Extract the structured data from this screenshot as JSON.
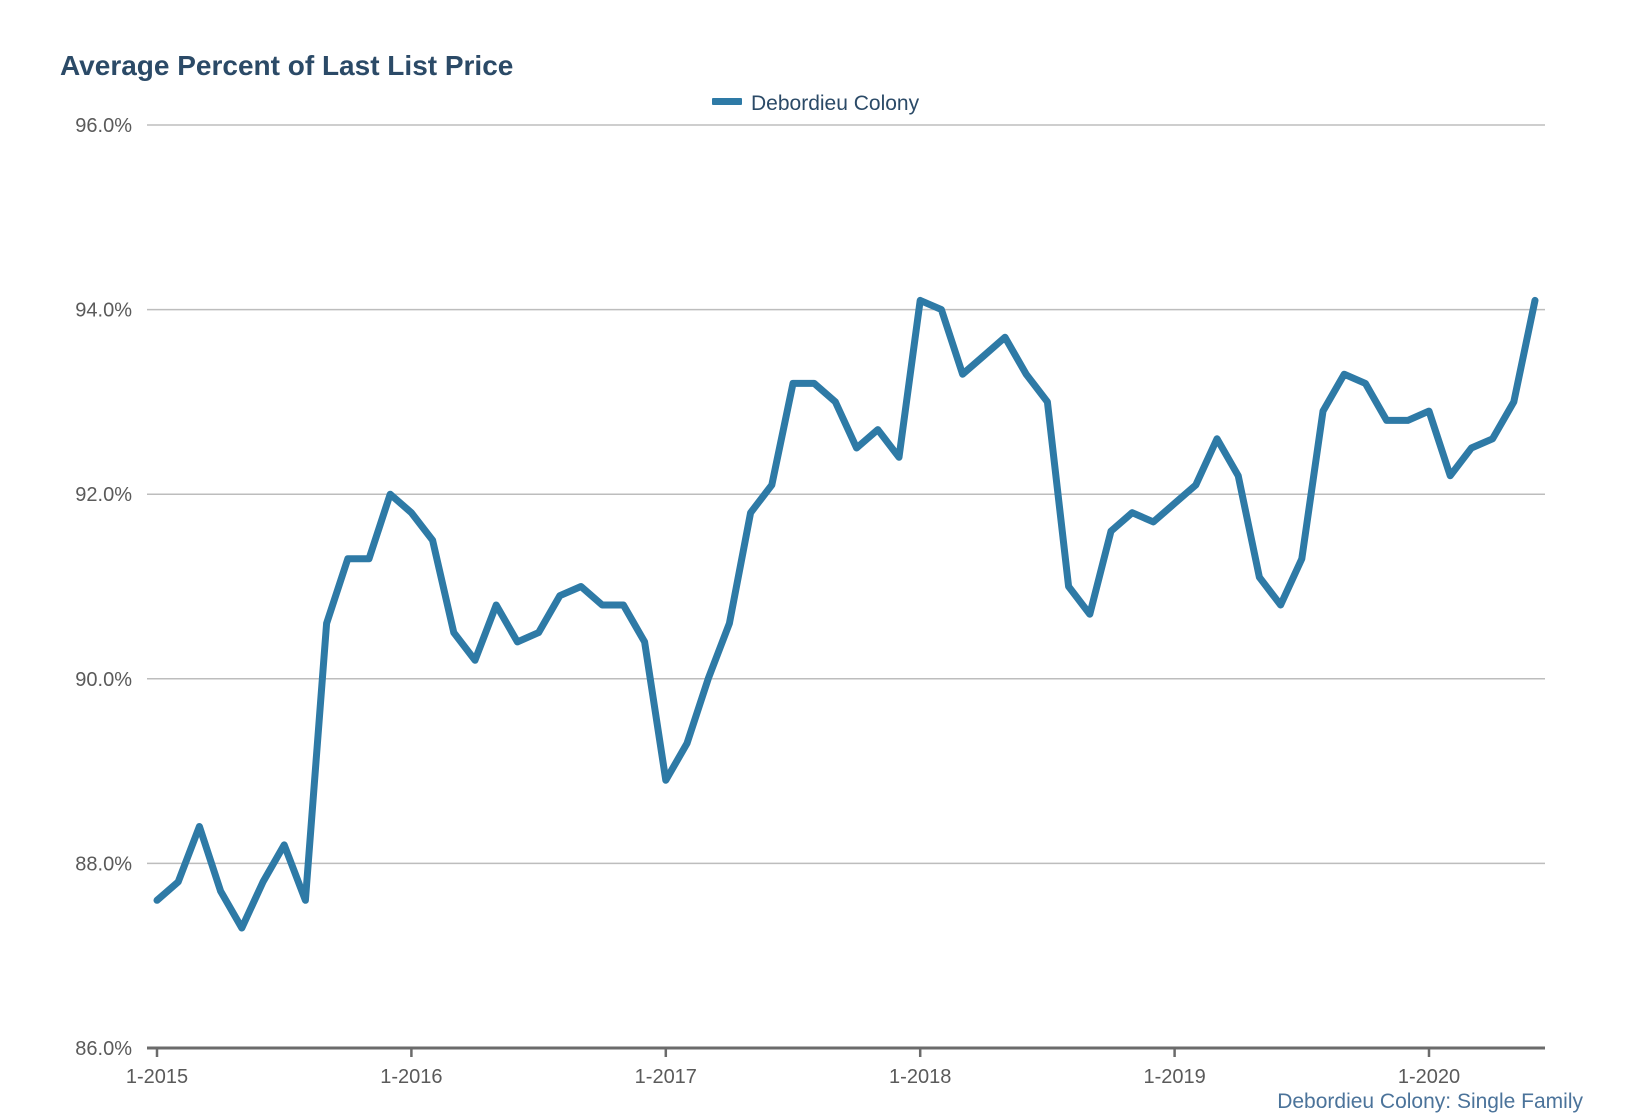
{
  "chart_data": {
    "type": "line",
    "title": "Average Percent of Last List Price",
    "xlabel": "",
    "ylabel": "",
    "ylim": [
      86,
      96
    ],
    "y_ticks": [
      86,
      88,
      90,
      92,
      94,
      96
    ],
    "y_tick_labels": [
      "86.0%",
      "88.0%",
      "90.0%",
      "92.0%",
      "94.0%",
      "96.0%"
    ],
    "x_ticks": [
      0,
      12,
      24,
      36,
      48,
      60
    ],
    "x_tick_labels": [
      "1-2015",
      "1-2016",
      "1-2017",
      "1-2018",
      "1-2019",
      "1-2020"
    ],
    "grid": true,
    "legend_position": "top-center",
    "source_note": "Debordieu Colony: Single Family",
    "colors": {
      "title": "#2b4a67",
      "series": "#2e7aa6",
      "axis_text": "#5a5a5a",
      "gridline": "#bdbdbd",
      "baseline": "#6b6b6b",
      "source": "#4b739a"
    },
    "series": [
      {
        "name": "Debordieu Colony",
        "x": [
          "1-2015",
          "2-2015",
          "3-2015",
          "4-2015",
          "5-2015",
          "6-2015",
          "7-2015",
          "8-2015",
          "9-2015",
          "10-2015",
          "11-2015",
          "12-2015",
          "1-2016",
          "2-2016",
          "3-2016",
          "4-2016",
          "5-2016",
          "6-2016",
          "7-2016",
          "8-2016",
          "9-2016",
          "10-2016",
          "11-2016",
          "12-2016",
          "1-2017",
          "2-2017",
          "3-2017",
          "4-2017",
          "5-2017",
          "6-2017",
          "7-2017",
          "8-2017",
          "9-2017",
          "10-2017",
          "11-2017",
          "12-2017",
          "1-2018",
          "2-2018",
          "3-2018",
          "4-2018",
          "5-2018",
          "6-2018",
          "7-2018",
          "8-2018",
          "9-2018",
          "10-2018",
          "11-2018",
          "12-2018",
          "1-2019",
          "2-2019",
          "3-2019",
          "4-2019",
          "5-2019",
          "6-2019",
          "7-2019",
          "8-2019",
          "9-2019",
          "10-2019",
          "11-2019",
          "12-2019",
          "1-2020",
          "2-2020",
          "3-2020",
          "4-2020",
          "5-2020",
          "6-2020"
        ],
        "values": [
          87.6,
          87.8,
          88.4,
          87.7,
          87.3,
          87.8,
          88.2,
          87.6,
          90.6,
          91.3,
          91.3,
          92.0,
          91.8,
          91.5,
          90.5,
          90.2,
          90.8,
          90.4,
          90.5,
          90.9,
          91.0,
          90.8,
          90.8,
          90.4,
          88.9,
          89.3,
          90.0,
          90.6,
          91.8,
          92.1,
          93.2,
          93.2,
          93.0,
          92.5,
          92.7,
          92.4,
          94.1,
          94.0,
          93.3,
          93.5,
          93.7,
          93.3,
          93.0,
          91.0,
          90.7,
          91.6,
          91.8,
          91.7,
          91.9,
          92.1,
          92.6,
          92.2,
          91.1,
          90.8,
          91.3,
          92.9,
          93.3,
          93.2,
          92.8,
          92.8,
          92.9,
          92.2,
          92.5,
          92.6,
          93.0,
          94.1
        ]
      }
    ]
  }
}
